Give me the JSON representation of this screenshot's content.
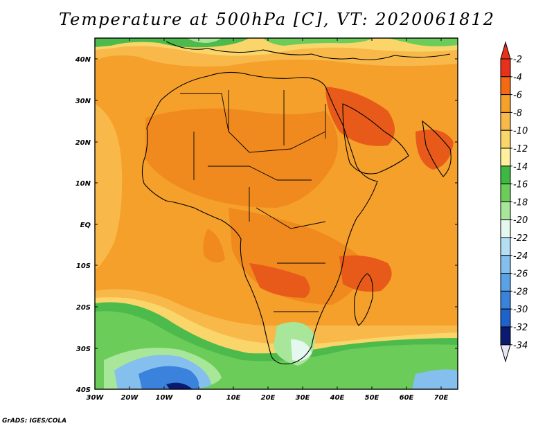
{
  "title": "Temperature at 500hPa [C], VT: 2020061812",
  "credit": "GrADS: IGES/COLA",
  "map": {
    "lat_ticks": [
      "40N",
      "30N",
      "20N",
      "10N",
      "EQ",
      "10S",
      "20S",
      "30S",
      "40S"
    ],
    "lon_ticks": [
      "30W",
      "20W",
      "10W",
      "0",
      "10E",
      "20E",
      "30E",
      "40E",
      "50E",
      "60E",
      "70E"
    ],
    "lon_range": [
      -30,
      75
    ],
    "lat_range": [
      -40,
      45
    ]
  },
  "colorbar": {
    "labels": [
      "-2",
      "-4",
      "-6",
      "-8",
      "-10",
      "-12",
      "-14",
      "-16",
      "-18",
      "-20",
      "-22",
      "-24",
      "-26",
      "-28",
      "-30",
      "-32",
      "-34"
    ],
    "colors": [
      "#e8301a",
      "#f26b12",
      "#f5a02a",
      "#f8b84a",
      "#fad56a",
      "#fff09c",
      "#3cb843",
      "#6ccc5a",
      "#a8e69a",
      "#e4f8f0",
      "#b4def4",
      "#84bfee",
      "#5aa2e6",
      "#3a82dc",
      "#1e62cc",
      "#1040aa",
      "#0a1a6e"
    ],
    "top_arrow_color": "#e8301a",
    "bottom_arrow_color": "#e8e6f6"
  },
  "colors": {
    "ocean_base": "#f5a02a",
    "land_dark": "#f08a1e",
    "hot": "#e85a1a",
    "north_green": "#4cbb4c",
    "south_green": "#6ccc5a",
    "cold_blue": "#5aa2e6"
  }
}
